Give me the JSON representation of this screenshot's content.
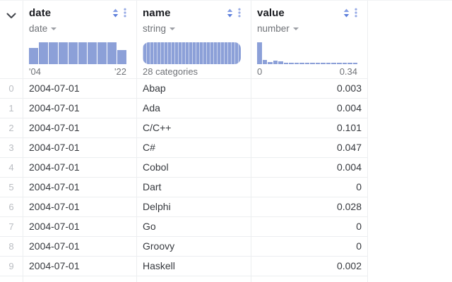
{
  "colors": {
    "histogram_bar": "#8CA0D8",
    "sort_icon": "#5C7EDB",
    "menu_dots": "#96AAE5",
    "header_text": "#1A1C21",
    "muted_text": "#6F7277",
    "cell_text": "#36393E",
    "row_index_text": "#BABDC2",
    "border": "#ECEEF0"
  },
  "header": {
    "gutter_icon": "chevron-down",
    "columns": [
      {
        "title": "date",
        "type_label": "date",
        "range_left": "'04",
        "range_right": "'22",
        "chart": {
          "kind": "histogram",
          "bin_heights": [
            0.75,
            1,
            1,
            1,
            1,
            1,
            1,
            1,
            1,
            0.63
          ]
        }
      },
      {
        "title": "name",
        "type_label": "string",
        "range_left": "28 categories",
        "range_right": "",
        "chart": {
          "kind": "categories",
          "count": 28
        }
      },
      {
        "title": "value",
        "type_label": "number",
        "range_left": "0",
        "range_right": "0.34",
        "chart": {
          "kind": "histogram",
          "bin_heights": [
            1,
            0.19,
            0.09,
            0.16,
            0.12,
            0.05,
            0.05,
            0.05,
            0.05,
            0.05,
            0.05,
            0.05,
            0.05,
            0.05,
            0.05,
            0.05,
            0.05,
            0.05,
            0.05
          ]
        }
      }
    ]
  },
  "rows": [
    {
      "index": "0",
      "cells": [
        "2004-07-01",
        "Abap",
        "0.003"
      ]
    },
    {
      "index": "1",
      "cells": [
        "2004-07-01",
        "Ada",
        "0.004"
      ]
    },
    {
      "index": "2",
      "cells": [
        "2004-07-01",
        "C/C++",
        "0.101"
      ]
    },
    {
      "index": "3",
      "cells": [
        "2004-07-01",
        "C#",
        "0.047"
      ]
    },
    {
      "index": "4",
      "cells": [
        "2004-07-01",
        "Cobol",
        "0.004"
      ]
    },
    {
      "index": "5",
      "cells": [
        "2004-07-01",
        "Dart",
        "0"
      ]
    },
    {
      "index": "6",
      "cells": [
        "2004-07-01",
        "Delphi",
        "0.028"
      ]
    },
    {
      "index": "7",
      "cells": [
        "2004-07-01",
        "Go",
        "0"
      ]
    },
    {
      "index": "8",
      "cells": [
        "2004-07-01",
        "Groovy",
        "0"
      ]
    },
    {
      "index": "9",
      "cells": [
        "2004-07-01",
        "Haskell",
        "0.002"
      ]
    }
  ]
}
